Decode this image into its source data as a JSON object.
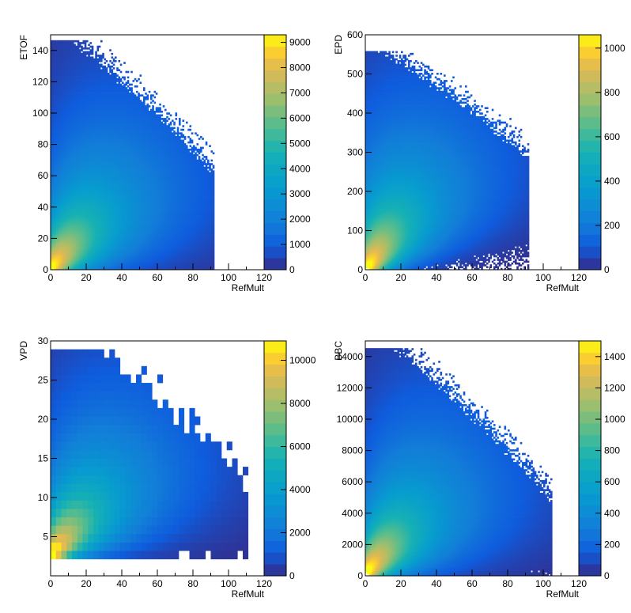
{
  "chart_data": [
    {
      "type": "heatmap",
      "xlabel": "RefMult",
      "ylabel": "ETOF",
      "xlim": [
        0,
        120
      ],
      "ylim": [
        0,
        150
      ],
      "xticks": [
        0,
        20,
        40,
        60,
        80,
        100,
        120
      ],
      "xtick_labels": [
        "0",
        "20",
        "40",
        "60",
        "80",
        "100",
        "120"
      ],
      "yticks": [
        0,
        20,
        40,
        60,
        80,
        100,
        120,
        140
      ],
      "ytick_labels": [
        "0",
        "20",
        "40",
        "60",
        "80",
        "100",
        "120",
        "140"
      ],
      "zlim": [
        0,
        9300
      ],
      "zticks": [
        0,
        1000,
        2000,
        3000,
        4000,
        5000,
        6000,
        7000,
        8000,
        9000
      ],
      "ztick_labels": [
        "0",
        "1000",
        "2000",
        "3000",
        "4000",
        "5000",
        "6000",
        "7000",
        "8000",
        "9000"
      ],
      "colormap": "viridis-like (dark blue to yellow)",
      "peak": [
        2,
        4
      ],
      "core_direction": [
        1,
        1.4
      ],
      "support_extent": {
        "x": [
          0,
          92
        ],
        "y": [
          0,
          146
        ]
      },
      "grid": false
    },
    {
      "type": "heatmap",
      "xlabel": "RefMult",
      "ylabel": "EPD",
      "xlim": [
        0,
        120
      ],
      "ylim": [
        0,
        600
      ],
      "xticks": [
        0,
        20,
        40,
        60,
        80,
        100,
        120
      ],
      "xtick_labels": [
        "0",
        "20",
        "40",
        "60",
        "80",
        "100",
        "120"
      ],
      "yticks": [
        0,
        100,
        200,
        300,
        400,
        500,
        600
      ],
      "ytick_labels": [
        "0",
        "100",
        "200",
        "300",
        "400",
        "500",
        "600"
      ],
      "zlim": [
        0,
        1060
      ],
      "zticks": [
        0,
        200,
        400,
        600,
        800,
        1000
      ],
      "ztick_labels": [
        "0",
        "200",
        "400",
        "600",
        "800",
        "1000"
      ],
      "colormap": "viridis-like (dark blue to yellow)",
      "peak": [
        3,
        20
      ],
      "core_direction": [
        1,
        7.5
      ],
      "support_extent": {
        "x": [
          0,
          92
        ],
        "y": [
          0,
          560
        ]
      },
      "grid": false
    },
    {
      "type": "heatmap",
      "xlabel": "RefMult",
      "ylabel": "VPD",
      "xlim": [
        0,
        120
      ],
      "ylim": [
        0,
        30
      ],
      "xticks": [
        0,
        20,
        40,
        60,
        80,
        100,
        120
      ],
      "xtick_labels": [
        "0",
        "20",
        "40",
        "60",
        "80",
        "100",
        "120"
      ],
      "yticks": [
        5,
        10,
        15,
        20,
        25,
        30
      ],
      "ytick_labels": [
        "5",
        "10",
        "15",
        "20",
        "25",
        "30"
      ],
      "zlim": [
        0,
        10900
      ],
      "zticks": [
        0,
        2000,
        4000,
        6000,
        8000,
        10000
      ],
      "ztick_labels": [
        "0",
        "2000",
        "4000",
        "6000",
        "8000",
        "10000"
      ],
      "colormap": "viridis-like (dark blue to yellow)",
      "peak": [
        3,
        3.5
      ],
      "core_direction": [
        1,
        0.3
      ],
      "support_extent": {
        "x": [
          0,
          110
        ],
        "y": [
          2,
          29
        ]
      },
      "grid": false
    },
    {
      "type": "heatmap",
      "xlabel": "RefMult",
      "ylabel": "BBC",
      "xlim": [
        0,
        120
      ],
      "ylim": [
        0,
        15000
      ],
      "xticks": [
        0,
        20,
        40,
        60,
        80,
        100,
        120
      ],
      "xtick_labels": [
        "0",
        "20",
        "40",
        "60",
        "80",
        "100",
        "120"
      ],
      "yticks": [
        0,
        2000,
        4000,
        6000,
        8000,
        10000,
        12000,
        14000
      ],
      "ytick_labels": [
        "0",
        "2000",
        "4000",
        "6000",
        "8000",
        "10000",
        "12000",
        "14000"
      ],
      "zlim": [
        0,
        1500
      ],
      "zticks": [
        0,
        200,
        400,
        600,
        800,
        1000,
        1200,
        1400
      ],
      "ztick_labels": [
        "0",
        "200",
        "400",
        "600",
        "800",
        "1000",
        "1200",
        "1400"
      ],
      "colormap": "viridis-like (dark blue to yellow)",
      "peak": [
        3,
        600
      ],
      "core_direction": [
        1,
        140
      ],
      "support_extent": {
        "x": [
          0,
          105
        ],
        "y": [
          0,
          14500
        ]
      },
      "grid": false
    }
  ]
}
